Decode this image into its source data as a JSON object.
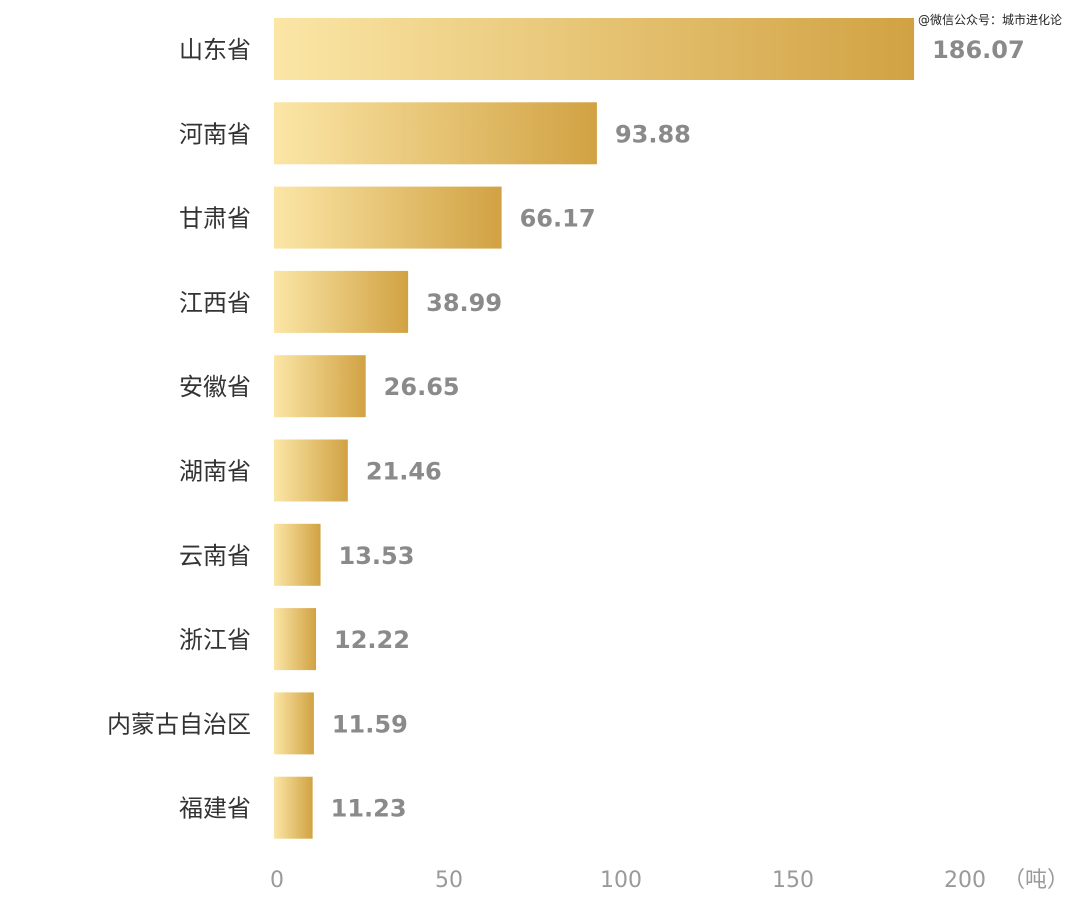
{
  "watermark": "@微信公众号：城市进化论",
  "chart_data": {
    "type": "bar",
    "orientation": "horizontal",
    "categories": [
      "山东省",
      "河南省",
      "甘肃省",
      "江西省",
      "安徽省",
      "湖南省",
      "云南省",
      "浙江省",
      "内蒙古自治区",
      "福建省"
    ],
    "values": [
      186.07,
      93.88,
      66.17,
      38.99,
      26.65,
      21.46,
      13.53,
      12.22,
      11.59,
      11.23
    ],
    "value_labels": [
      "186.07",
      "93.88",
      "66.17",
      "38.99",
      "26.65",
      "21.46",
      "13.53",
      "12.22",
      "11.59",
      "11.23"
    ],
    "xticks": [
      {
        "value": 0,
        "label": "0"
      },
      {
        "value": 50,
        "label": "50"
      },
      {
        "value": 100,
        "label": "100"
      },
      {
        "value": 150,
        "label": "150"
      },
      {
        "value": 200,
        "label": "200"
      }
    ],
    "xunit": "（吨）",
    "xlim": [
      0,
      200
    ],
    "grid": false,
    "legend": "none",
    "colors": {
      "bar_start": "#fbe6a6",
      "bar_end": "#d1a243",
      "value_text": "#8a8a8a",
      "category_text": "#333333",
      "tick_text": "#9a9a9a"
    }
  }
}
